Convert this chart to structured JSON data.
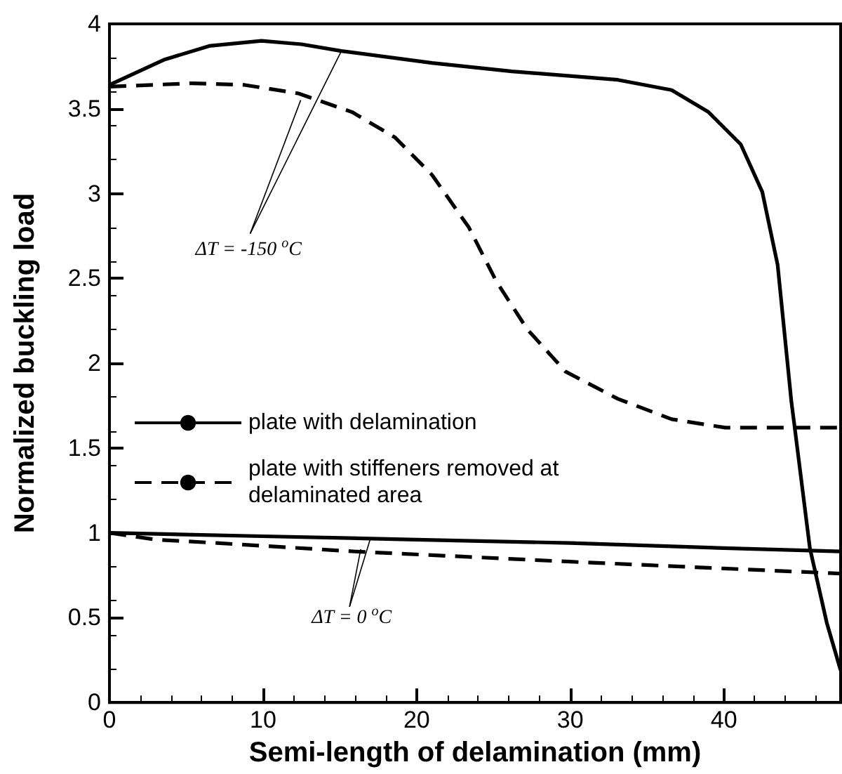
{
  "chart_data": {
    "type": "line",
    "xlabel": "Semi-length of delamination (mm)",
    "ylabel": "Normalized buckling load",
    "xlim": [
      0,
      47.6
    ],
    "xticks": [
      0,
      10,
      20,
      30,
      40
    ],
    "ylim": [
      0,
      4
    ],
    "yticks": [
      0,
      0.5,
      1,
      1.5,
      2,
      2.5,
      3,
      3.5,
      4
    ],
    "grid": false,
    "legend": "left",
    "marker": "none",
    "series": [
      {
        "name": "plate with delamination",
        "color": "#000000",
        "line_style": "solid",
        "x": [
          0,
          3.6,
          6.5,
          9.9,
          12.5,
          15.1,
          21,
          26.2,
          33.1,
          36.6,
          39,
          41.1,
          42.5,
          43.5,
          44.4,
          44.6,
          45.6,
          46.7,
          47.6
        ],
        "values": [
          3.64,
          3.79,
          3.87,
          3.9,
          3.88,
          3.84,
          3.77,
          3.72,
          3.67,
          3.61,
          3.48,
          3.29,
          3.01,
          2.58,
          1.77,
          1.63,
          0.91,
          0.47,
          0.19
        ]
      },
      {
        "name": "plate with stiffeners removed at delaminated area",
        "color": "#000000",
        "line_style": "dashed",
        "x": [
          0,
          5.4,
          8.8,
          12.3,
          15.8,
          18.6,
          21,
          23.4,
          25.2,
          27.2,
          29.7,
          33.1,
          36.6,
          40.1,
          43.7,
          47.6
        ],
        "values": [
          3.63,
          3.65,
          3.64,
          3.59,
          3.48,
          3.33,
          3.11,
          2.8,
          2.48,
          2.2,
          1.95,
          1.79,
          1.67,
          1.62,
          1.62,
          1.62
        ]
      },
      {
        "color": "#000000",
        "line_style": "solid",
        "x": [
          0,
          10,
          20,
          30,
          40,
          47.6
        ],
        "values": [
          1.0,
          0.98,
          0.96,
          0.94,
          0.91,
          0.89
        ]
      },
      {
        "color": "#000000",
        "line_style": "dashed",
        "x": [
          0,
          3,
          7,
          16,
          30,
          40,
          47.6
        ],
        "values": [
          1.0,
          0.96,
          0.94,
          0.89,
          0.83,
          0.79,
          0.76
        ]
      }
    ],
    "annotations": [
      {
        "text": "ΔT = -150 $^{o}$C",
        "x": 15.1,
        "y": 3.84
      },
      {
        "text": "ΔT = 0 $^{o}$C",
        "x": 17,
        "y": 0.97
      }
    ]
  }
}
